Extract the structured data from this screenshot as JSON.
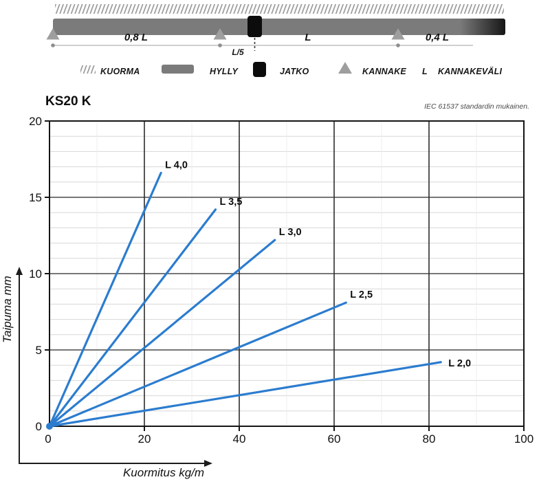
{
  "diagram": {
    "labels": {
      "left_span": "0,8 L",
      "mid_span": "L",
      "right_span": "0,4 L",
      "joint_offset": "L/5"
    },
    "legend": [
      {
        "icon": "hatch-load-icon",
        "label": "KUORMA"
      },
      {
        "icon": "shelf-bar-icon",
        "label": "HYLLY"
      },
      {
        "icon": "joint-square-icon",
        "label": "JATKO"
      },
      {
        "icon": "support-triangle-icon",
        "label": "KANNAKE"
      },
      {
        "icon": "letter-symbol",
        "symbol": "L",
        "label": "KANNAKEVÄLI"
      }
    ]
  },
  "chart_data": {
    "type": "line",
    "title": "KS20 K",
    "note": "IEC 61537 standardin mukainen.",
    "xlabel": "Kuormitus kg/m",
    "ylabel": "Taipuma mm",
    "xlim": [
      0,
      100
    ],
    "ylim": [
      0,
      20
    ],
    "xticks": [
      0,
      20,
      40,
      60,
      80,
      100
    ],
    "yticks": [
      0,
      5,
      10,
      15,
      20
    ],
    "x_minor_step": 10,
    "y_minor_step": 1,
    "grid": true,
    "legend_position": "inline-end-of-line",
    "line_color": "#2B7CCF",
    "series": [
      {
        "name": "L 4,0",
        "x": [
          0,
          23.5
        ],
        "y": [
          0,
          16.6
        ]
      },
      {
        "name": "L 3,5",
        "x": [
          0,
          35.0
        ],
        "y": [
          0,
          14.2
        ]
      },
      {
        "name": "L 3,0",
        "x": [
          0,
          47.5
        ],
        "y": [
          0,
          12.2
        ]
      },
      {
        "name": "L 2,5",
        "x": [
          0,
          62.5
        ],
        "y": [
          0,
          8.1
        ]
      },
      {
        "name": "L 2,0",
        "x": [
          0,
          82.5
        ],
        "y": [
          0,
          4.2
        ]
      }
    ]
  },
  "colors": {
    "accent_blue": "#2B7CCF",
    "shelf_gray": "#7B7B7B",
    "shelf_end_dark": "#161616",
    "support_gray": "#9E9E9E",
    "joint_black": "#0C0C0C",
    "hatch_gray": "#9A9A9A",
    "baseline_gray": "#B3B3B3"
  }
}
